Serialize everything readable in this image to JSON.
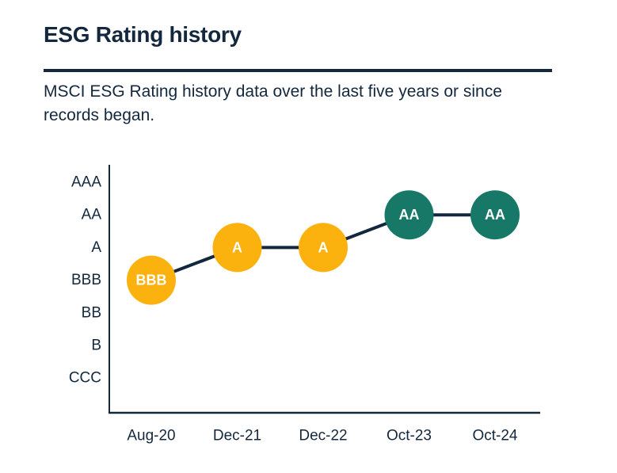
{
  "page": {
    "title": "ESG Rating history",
    "subtitle_line1": "MSCI ESG Rating history data over the last five years or since",
    "subtitle_line2": "records began."
  },
  "colors": {
    "navy": "#13283E",
    "axis": "#13283E",
    "line": "#13283E",
    "yellow": "#FBB10E",
    "teal": "#177868",
    "point_label": "#FFFFFF"
  },
  "chart_data": {
    "type": "line",
    "title": "ESG Rating history",
    "x": [
      "Aug-20",
      "Dec-21",
      "Dec-22",
      "Oct-23",
      "Oct-24"
    ],
    "y_categories_top_to_bottom": [
      "AAA",
      "AA",
      "A",
      "BBB",
      "BB",
      "B",
      "CCC"
    ],
    "series": [
      {
        "name": "MSCI ESG Rating",
        "values": [
          "BBB",
          "A",
          "A",
          "AA",
          "AA"
        ]
      }
    ],
    "point_colors": [
      "#FBB10E",
      "#FBB10E",
      "#FBB10E",
      "#177868",
      "#177868"
    ],
    "grid": false,
    "legend": "none"
  }
}
